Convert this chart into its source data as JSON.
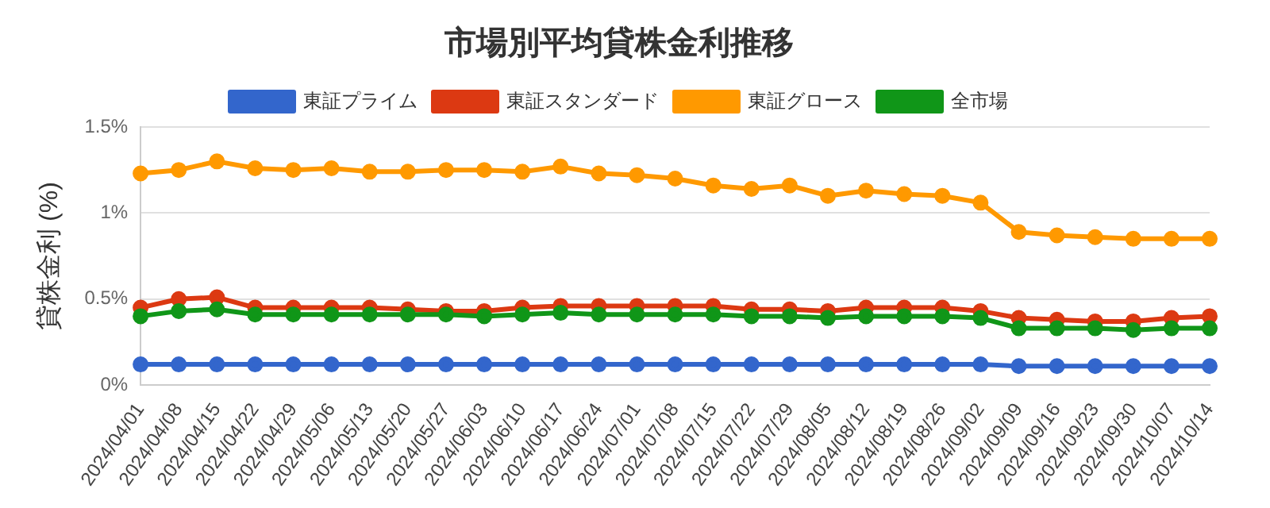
{
  "chart_data": {
    "type": "line",
    "title": "市場別平均貸株金利推移",
    "ylabel": "貸株金利 (%)",
    "categories": [
      "2024/04/01",
      "2024/04/08",
      "2024/04/15",
      "2024/04/22",
      "2024/04/29",
      "2024/05/06",
      "2024/05/13",
      "2024/05/20",
      "2024/05/27",
      "2024/06/03",
      "2024/06/10",
      "2024/06/17",
      "2024/06/24",
      "2024/07/01",
      "2024/07/08",
      "2024/07/15",
      "2024/07/22",
      "2024/07/29",
      "2024/08/05",
      "2024/08/12",
      "2024/08/19",
      "2024/08/26",
      "2024/09/02",
      "2024/09/09",
      "2024/09/16",
      "2024/09/23",
      "2024/09/30",
      "2024/10/07",
      "2024/10/14"
    ],
    "series": [
      {
        "name": "東証プライム",
        "color": "#3366cc",
        "values": [
          0.12,
          0.12,
          0.12,
          0.12,
          0.12,
          0.12,
          0.12,
          0.12,
          0.12,
          0.12,
          0.12,
          0.12,
          0.12,
          0.12,
          0.12,
          0.12,
          0.12,
          0.12,
          0.12,
          0.12,
          0.12,
          0.12,
          0.12,
          0.11,
          0.11,
          0.11,
          0.11,
          0.11,
          0.11
        ]
      },
      {
        "name": "東証スタンダード",
        "color": "#dc3912",
        "values": [
          0.45,
          0.5,
          0.51,
          0.45,
          0.45,
          0.45,
          0.45,
          0.44,
          0.43,
          0.43,
          0.45,
          0.46,
          0.46,
          0.46,
          0.46,
          0.46,
          0.44,
          0.44,
          0.43,
          0.45,
          0.45,
          0.45,
          0.43,
          0.39,
          0.38,
          0.37,
          0.37,
          0.39,
          0.4
        ]
      },
      {
        "name": "東証グロース",
        "color": "#ff9900",
        "values": [
          1.23,
          1.25,
          1.3,
          1.26,
          1.25,
          1.26,
          1.24,
          1.24,
          1.25,
          1.25,
          1.24,
          1.27,
          1.23,
          1.22,
          1.2,
          1.16,
          1.14,
          1.16,
          1.1,
          1.13,
          1.11,
          1.1,
          1.06,
          0.89,
          0.87,
          0.86,
          0.85,
          0.85,
          0.85
        ]
      },
      {
        "name": "全市場",
        "color": "#109618",
        "values": [
          0.4,
          0.43,
          0.44,
          0.41,
          0.41,
          0.41,
          0.41,
          0.41,
          0.41,
          0.4,
          0.41,
          0.42,
          0.41,
          0.41,
          0.41,
          0.41,
          0.4,
          0.4,
          0.39,
          0.4,
          0.4,
          0.4,
          0.39,
          0.33,
          0.33,
          0.33,
          0.32,
          0.33,
          0.33
        ]
      }
    ],
    "ylim": [
      0,
      1.5
    ],
    "yticks": [
      {
        "value": 0,
        "label": "0%"
      },
      {
        "value": 0.5,
        "label": "0.5%"
      },
      {
        "value": 1,
        "label": "1%"
      },
      {
        "value": 1.5,
        "label": "1.5%"
      }
    ],
    "grid": "y",
    "legend": "top",
    "marker": "circle",
    "line_style": "solid"
  }
}
